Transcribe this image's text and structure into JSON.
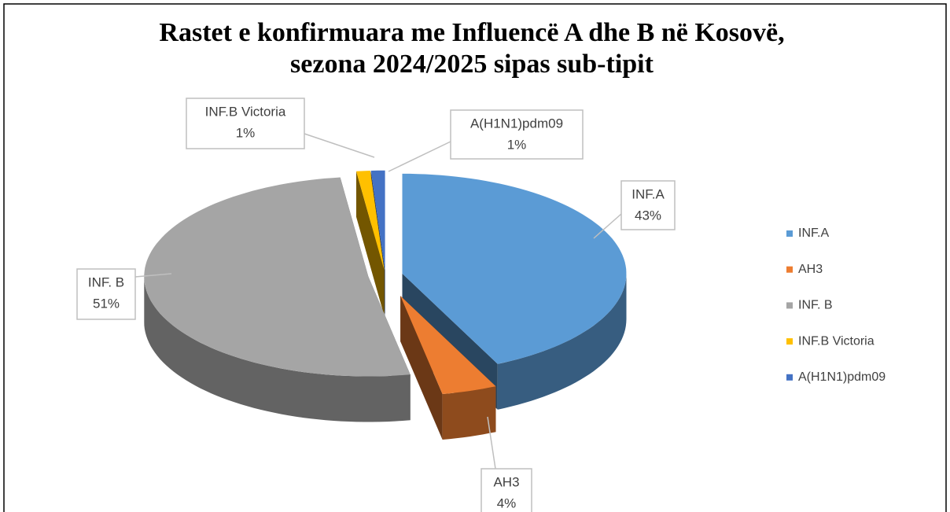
{
  "chart_data": {
    "type": "pie3d",
    "title": [
      "Rastet e konfirmuara me Influencë A dhe B në Kosovë,",
      "sezona 2024/2025 sipas sub-tipit"
    ],
    "categories": [
      "INF.A",
      "AH3",
      "INF. B",
      "INF.B Victoria",
      "A(H1N1)pdm09"
    ],
    "values": [
      43,
      4,
      51,
      1,
      1
    ],
    "value_labels": [
      "43%",
      "4%",
      "51%",
      "1%",
      "1%"
    ],
    "colors": [
      "#5b9bd5",
      "#ed7d31",
      "#a5a5a5",
      "#ffc000",
      "#4472c4"
    ],
    "legend": "right"
  }
}
